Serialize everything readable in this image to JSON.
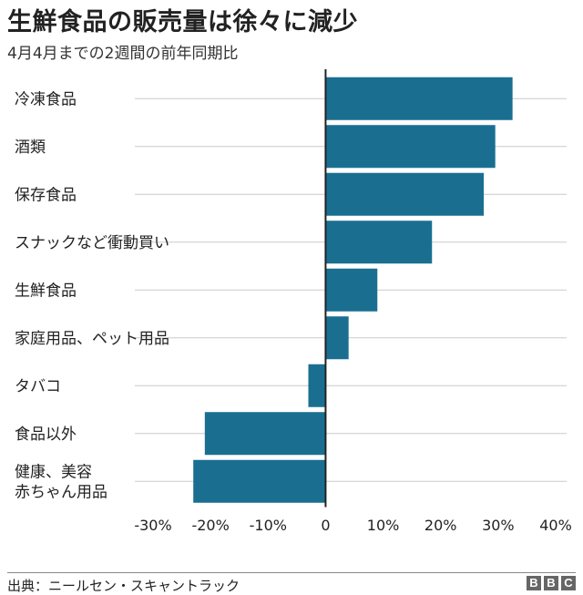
{
  "title": "生鮮食品の販売量は徐々に減少",
  "subtitle": "4月4月までの2週間の前年同期比",
  "source": "出典：ニールセン・スキャントラック",
  "logo": [
    "B",
    "B",
    "C"
  ],
  "colors": {
    "bar": "#1a6f91",
    "grid": "#cccccc",
    "axis": "#222222"
  },
  "chart_data": {
    "type": "bar",
    "orientation": "horizontal",
    "categories": [
      "冷凍食品",
      "酒類",
      "保存食品",
      "スナックなど衝動買い",
      "生鮮食品",
      "家庭用品、ペット用品",
      "タバコ",
      "食品以外",
      "健康、美容\n赤ちゃん用品"
    ],
    "values": [
      32.5,
      29.5,
      27.5,
      18.5,
      9.0,
      4.0,
      -3.0,
      -21.0,
      -23.0
    ],
    "xlim": [
      -30,
      40
    ],
    "xticks": [
      -30,
      -20,
      -10,
      0,
      10,
      20,
      30,
      40
    ],
    "xtick_labels": [
      "-30%",
      "-20%",
      "-10%",
      "0",
      "10%",
      "20%",
      "30%",
      "40%"
    ],
    "grid": true
  }
}
